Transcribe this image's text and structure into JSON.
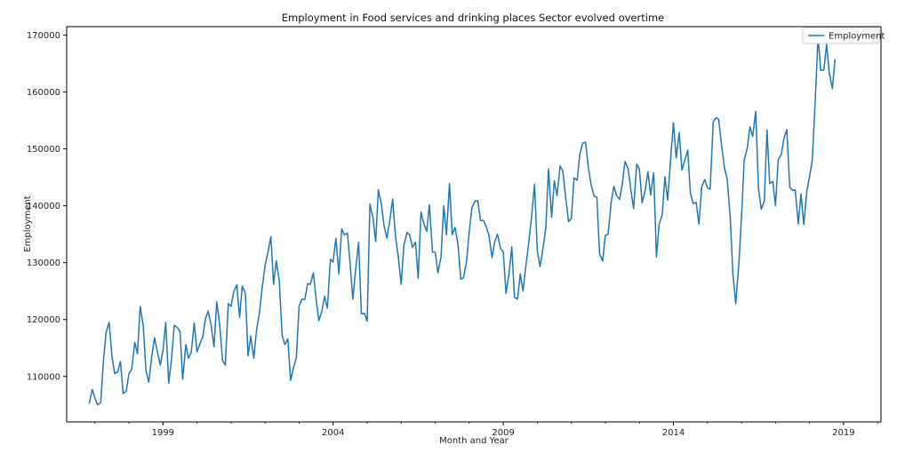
{
  "chart_data": {
    "type": "line",
    "title": "Employment in Food services and drinking places Sector evolved overtime",
    "xlabel": "Month and Year",
    "ylabel": "Employment",
    "x_range": [
      1996.17,
      2020.1
    ],
    "ylim": [
      102000,
      171500
    ],
    "x_ticks": [
      {
        "value": 1999,
        "label": "1999"
      },
      {
        "value": 2004,
        "label": "2004"
      },
      {
        "value": 2009,
        "label": "2009"
      },
      {
        "value": 2014,
        "label": "2014"
      },
      {
        "value": 2019,
        "label": "2019"
      }
    ],
    "y_ticks": [
      {
        "value": 110000,
        "label": "110000"
      },
      {
        "value": 120000,
        "label": "120000"
      },
      {
        "value": 130000,
        "label": "130000"
      },
      {
        "value": 140000,
        "label": "140000"
      },
      {
        "value": 150000,
        "label": "150000"
      },
      {
        "value": 160000,
        "label": "160000"
      },
      {
        "value": 170000,
        "label": "170000"
      }
    ],
    "grid": false,
    "legend": {
      "position": "top-right",
      "entries": [
        {
          "label": "Employment",
          "color": "#1f77b4"
        }
      ]
    },
    "series": [
      {
        "name": "Employment",
        "color": "#1f77b4",
        "points": [
          [
            1996.83,
            105200
          ],
          [
            1996.92,
            107700
          ],
          [
            1997.0,
            106200
          ],
          [
            1997.08,
            105000
          ],
          [
            1997.17,
            105400
          ],
          [
            1997.25,
            112600
          ],
          [
            1997.33,
            117800
          ],
          [
            1997.42,
            119500
          ],
          [
            1997.5,
            113600
          ],
          [
            1997.58,
            110500
          ],
          [
            1997.67,
            110800
          ],
          [
            1997.75,
            112600
          ],
          [
            1997.83,
            107000
          ],
          [
            1997.92,
            107400
          ],
          [
            1998.0,
            110500
          ],
          [
            1998.08,
            111200
          ],
          [
            1998.17,
            116000
          ],
          [
            1998.25,
            114000
          ],
          [
            1998.33,
            122300
          ],
          [
            1998.42,
            119000
          ],
          [
            1998.5,
            111000
          ],
          [
            1998.58,
            109000
          ],
          [
            1998.67,
            113500
          ],
          [
            1998.75,
            116800
          ],
          [
            1998.83,
            114500
          ],
          [
            1998.92,
            112000
          ],
          [
            1999.0,
            114500
          ],
          [
            1999.08,
            119500
          ],
          [
            1999.17,
            108800
          ],
          [
            1999.25,
            113000
          ],
          [
            1999.33,
            119000
          ],
          [
            1999.42,
            118600
          ],
          [
            1999.5,
            117900
          ],
          [
            1999.58,
            109500
          ],
          [
            1999.67,
            115600
          ],
          [
            1999.75,
            113200
          ],
          [
            1999.83,
            114200
          ],
          [
            1999.92,
            119400
          ],
          [
            2000.0,
            114300
          ],
          [
            2000.08,
            115600
          ],
          [
            2000.17,
            117000
          ],
          [
            2000.25,
            120200
          ],
          [
            2000.33,
            121500
          ],
          [
            2000.42,
            118800
          ],
          [
            2000.5,
            115200
          ],
          [
            2000.58,
            123100
          ],
          [
            2000.67,
            118800
          ],
          [
            2000.75,
            112800
          ],
          [
            2000.83,
            112000
          ],
          [
            2000.92,
            122800
          ],
          [
            2001.0,
            122300
          ],
          [
            2001.08,
            124900
          ],
          [
            2001.17,
            126100
          ],
          [
            2001.25,
            120400
          ],
          [
            2001.33,
            125900
          ],
          [
            2001.42,
            124600
          ],
          [
            2001.5,
            113600
          ],
          [
            2001.58,
            117100
          ],
          [
            2001.67,
            113200
          ],
          [
            2001.75,
            118200
          ],
          [
            2001.83,
            121000
          ],
          [
            2001.92,
            125800
          ],
          [
            2002.0,
            129500
          ],
          [
            2002.08,
            131700
          ],
          [
            2002.17,
            134600
          ],
          [
            2002.25,
            126200
          ],
          [
            2002.33,
            130300
          ],
          [
            2002.42,
            126800
          ],
          [
            2002.5,
            117200
          ],
          [
            2002.58,
            115600
          ],
          [
            2002.67,
            116600
          ],
          [
            2002.75,
            109300
          ],
          [
            2002.83,
            111400
          ],
          [
            2002.92,
            113300
          ],
          [
            2003.0,
            122300
          ],
          [
            2003.08,
            123600
          ],
          [
            2003.17,
            123500
          ],
          [
            2003.25,
            126300
          ],
          [
            2003.33,
            126200
          ],
          [
            2003.42,
            128200
          ],
          [
            2003.5,
            123600
          ],
          [
            2003.58,
            119800
          ],
          [
            2003.67,
            121500
          ],
          [
            2003.75,
            124100
          ],
          [
            2003.83,
            122000
          ],
          [
            2003.92,
            130600
          ],
          [
            2004.0,
            130100
          ],
          [
            2004.08,
            134300
          ],
          [
            2004.17,
            128000
          ],
          [
            2004.25,
            135900
          ],
          [
            2004.33,
            134900
          ],
          [
            2004.42,
            135200
          ],
          [
            2004.5,
            129700
          ],
          [
            2004.58,
            123600
          ],
          [
            2004.67,
            129300
          ],
          [
            2004.75,
            133600
          ],
          [
            2004.83,
            121000
          ],
          [
            2004.92,
            121100
          ],
          [
            2005.0,
            119700
          ],
          [
            2005.08,
            140300
          ],
          [
            2005.17,
            138000
          ],
          [
            2005.25,
            133700
          ],
          [
            2005.33,
            142800
          ],
          [
            2005.42,
            140200
          ],
          [
            2005.5,
            136400
          ],
          [
            2005.58,
            134300
          ],
          [
            2005.67,
            137600
          ],
          [
            2005.75,
            141200
          ],
          [
            2005.83,
            134700
          ],
          [
            2005.92,
            130800
          ],
          [
            2006.0,
            126200
          ],
          [
            2006.08,
            133000
          ],
          [
            2006.17,
            135300
          ],
          [
            2006.25,
            134900
          ],
          [
            2006.33,
            132700
          ],
          [
            2006.42,
            133600
          ],
          [
            2006.5,
            127200
          ],
          [
            2006.58,
            138900
          ],
          [
            2006.67,
            136800
          ],
          [
            2006.75,
            135500
          ],
          [
            2006.83,
            140200
          ],
          [
            2006.92,
            131900
          ],
          [
            2007.0,
            131800
          ],
          [
            2007.08,
            128200
          ],
          [
            2007.17,
            131000
          ],
          [
            2007.25,
            140000
          ],
          [
            2007.33,
            134900
          ],
          [
            2007.42,
            143900
          ],
          [
            2007.5,
            134900
          ],
          [
            2007.58,
            136200
          ],
          [
            2007.67,
            133200
          ],
          [
            2007.75,
            127100
          ],
          [
            2007.83,
            127300
          ],
          [
            2007.92,
            130200
          ],
          [
            2008.0,
            135400
          ],
          [
            2008.08,
            139700
          ],
          [
            2008.17,
            140800
          ],
          [
            2008.25,
            140900
          ],
          [
            2008.33,
            137400
          ],
          [
            2008.42,
            137400
          ],
          [
            2008.5,
            136300
          ],
          [
            2008.58,
            134800
          ],
          [
            2008.67,
            130900
          ],
          [
            2008.75,
            133700
          ],
          [
            2008.83,
            135000
          ],
          [
            2008.92,
            132500
          ],
          [
            2009.0,
            131900
          ],
          [
            2009.08,
            124600
          ],
          [
            2009.17,
            128100
          ],
          [
            2009.25,
            132800
          ],
          [
            2009.33,
            123900
          ],
          [
            2009.42,
            123600
          ],
          [
            2009.5,
            128000
          ],
          [
            2009.58,
            125000
          ],
          [
            2009.67,
            129800
          ],
          [
            2009.75,
            133500
          ],
          [
            2009.83,
            138100
          ],
          [
            2009.92,
            143800
          ],
          [
            2010.0,
            132000
          ],
          [
            2010.08,
            129300
          ],
          [
            2010.17,
            132600
          ],
          [
            2010.25,
            136200
          ],
          [
            2010.33,
            146500
          ],
          [
            2010.42,
            138000
          ],
          [
            2010.5,
            144400
          ],
          [
            2010.58,
            141800
          ],
          [
            2010.67,
            147000
          ],
          [
            2010.75,
            146100
          ],
          [
            2010.83,
            141600
          ],
          [
            2010.92,
            137200
          ],
          [
            2011.0,
            137800
          ],
          [
            2011.08,
            144900
          ],
          [
            2011.17,
            144500
          ],
          [
            2011.25,
            149000
          ],
          [
            2011.33,
            151000
          ],
          [
            2011.42,
            151200
          ],
          [
            2011.5,
            146800
          ],
          [
            2011.58,
            143700
          ],
          [
            2011.67,
            141700
          ],
          [
            2011.75,
            141500
          ],
          [
            2011.83,
            131600
          ],
          [
            2011.92,
            130300
          ],
          [
            2012.0,
            134800
          ],
          [
            2012.08,
            135000
          ],
          [
            2012.17,
            140600
          ],
          [
            2012.25,
            143400
          ],
          [
            2012.33,
            141800
          ],
          [
            2012.42,
            141100
          ],
          [
            2012.5,
            144000
          ],
          [
            2012.58,
            147800
          ],
          [
            2012.67,
            146500
          ],
          [
            2012.75,
            142700
          ],
          [
            2012.83,
            139500
          ],
          [
            2012.92,
            147300
          ],
          [
            2013.0,
            146500
          ],
          [
            2013.08,
            140500
          ],
          [
            2013.17,
            142700
          ],
          [
            2013.25,
            146000
          ],
          [
            2013.33,
            141900
          ],
          [
            2013.42,
            145800
          ],
          [
            2013.5,
            131000
          ],
          [
            2013.58,
            136700
          ],
          [
            2013.67,
            138400
          ],
          [
            2013.75,
            145100
          ],
          [
            2013.83,
            141000
          ],
          [
            2013.92,
            148300
          ],
          [
            2014.0,
            154600
          ],
          [
            2014.08,
            148400
          ],
          [
            2014.17,
            152900
          ],
          [
            2014.25,
            146300
          ],
          [
            2014.33,
            147900
          ],
          [
            2014.42,
            149800
          ],
          [
            2014.5,
            142200
          ],
          [
            2014.58,
            140400
          ],
          [
            2014.67,
            140600
          ],
          [
            2014.75,
            136800
          ],
          [
            2014.83,
            143300
          ],
          [
            2014.92,
            144600
          ],
          [
            2015.0,
            143200
          ],
          [
            2015.08,
            142900
          ],
          [
            2015.17,
            154800
          ],
          [
            2015.25,
            155500
          ],
          [
            2015.33,
            155200
          ],
          [
            2015.42,
            150300
          ],
          [
            2015.5,
            146700
          ],
          [
            2015.58,
            144700
          ],
          [
            2015.67,
            138000
          ],
          [
            2015.75,
            127800
          ],
          [
            2015.83,
            122800
          ],
          [
            2015.92,
            129500
          ],
          [
            2016.0,
            138000
          ],
          [
            2016.08,
            148000
          ],
          [
            2016.17,
            150200
          ],
          [
            2016.25,
            153900
          ],
          [
            2016.33,
            152200
          ],
          [
            2016.42,
            156600
          ],
          [
            2016.5,
            143000
          ],
          [
            2016.58,
            139400
          ],
          [
            2016.67,
            140800
          ],
          [
            2016.75,
            153300
          ],
          [
            2016.83,
            143900
          ],
          [
            2016.92,
            144300
          ],
          [
            2017.0,
            140000
          ],
          [
            2017.08,
            148100
          ],
          [
            2017.17,
            149000
          ],
          [
            2017.25,
            151900
          ],
          [
            2017.33,
            153400
          ],
          [
            2017.42,
            143300
          ],
          [
            2017.5,
            142700
          ],
          [
            2017.58,
            142800
          ],
          [
            2017.67,
            136800
          ],
          [
            2017.75,
            142100
          ],
          [
            2017.83,
            136700
          ],
          [
            2017.92,
            142600
          ],
          [
            2018.0,
            145100
          ],
          [
            2018.08,
            148100
          ],
          [
            2018.17,
            158700
          ],
          [
            2018.25,
            169800
          ],
          [
            2018.33,
            163800
          ],
          [
            2018.42,
            163900
          ],
          [
            2018.5,
            168400
          ],
          [
            2018.58,
            163400
          ],
          [
            2018.67,
            160600
          ],
          [
            2018.75,
            165800
          ]
        ]
      }
    ]
  }
}
